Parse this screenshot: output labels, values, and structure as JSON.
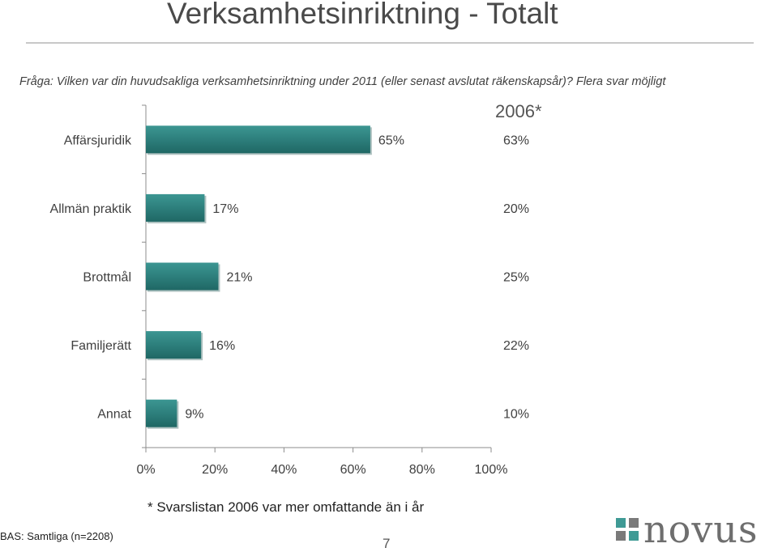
{
  "header": {
    "title": "Verksamhetsinriktning - Totalt",
    "question": "Fråga: Vilken var din huvudsakliga verksamhetsinriktning under 2011 (eller senast avslutat räkenskapsår)? Flera svar möjligt"
  },
  "chart_data": {
    "type": "bar",
    "orientation": "horizontal",
    "categories": [
      "Affärsjuridik",
      "Allmän praktik",
      "Brottmål",
      "Familjerätt",
      "Annat"
    ],
    "values": [
      65,
      17,
      21,
      16,
      9
    ],
    "value_labels": [
      "65%",
      "17%",
      "21%",
      "16%",
      "9%"
    ],
    "xlim": [
      0,
      100
    ],
    "x_ticks": [
      "0%",
      "20%",
      "40%",
      "60%",
      "80%",
      "100%"
    ],
    "comparison_header": "2006*",
    "comparison_values": [
      "63%",
      "20%",
      "25%",
      "22%",
      "10%"
    ],
    "bar_color": "#2d7f7c",
    "grid": false
  },
  "footer": {
    "footnote": "* Svarslistan 2006 var mer omfattande än i år",
    "base": "BAS: Samtliga (n=2208)",
    "page_number": "7",
    "logo_text": "novus"
  },
  "colors": {
    "bar": "#2d7f7c",
    "logo_squares": [
      "#3f9a95",
      "#7a7a7a"
    ]
  }
}
